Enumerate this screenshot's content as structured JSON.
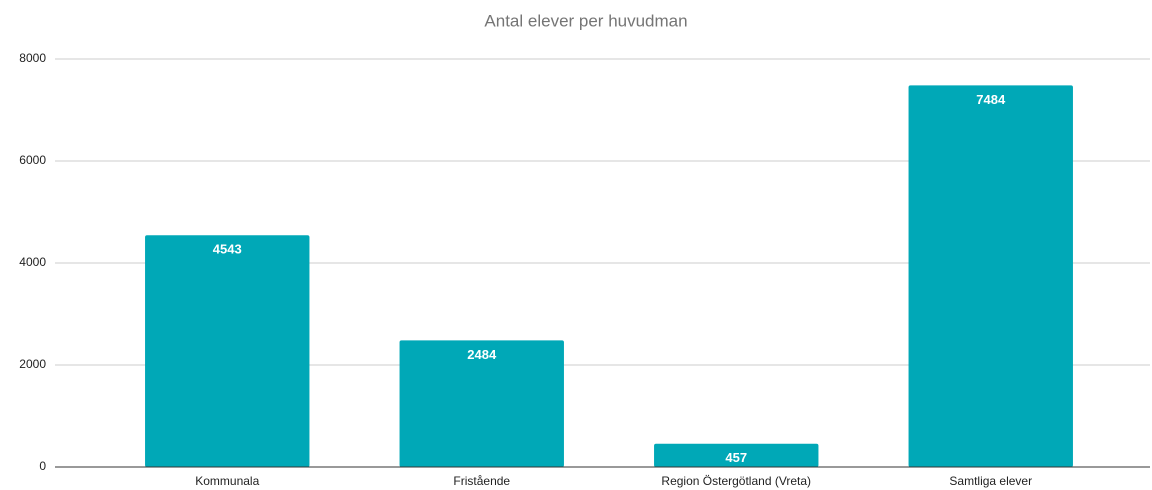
{
  "chart_data": {
    "type": "bar",
    "title": "Antal elever per huvudman",
    "categories": [
      "Kommunala",
      "Fristående",
      "Region Östergötland (Vreta)",
      "Samtliga elever"
    ],
    "values": [
      4543,
      2484,
      457,
      7484
    ],
    "color": "#00a8b7",
    "ylim": [
      0,
      8000
    ],
    "yticks": [
      0,
      2000,
      4000,
      6000,
      8000
    ],
    "grid": true
  }
}
